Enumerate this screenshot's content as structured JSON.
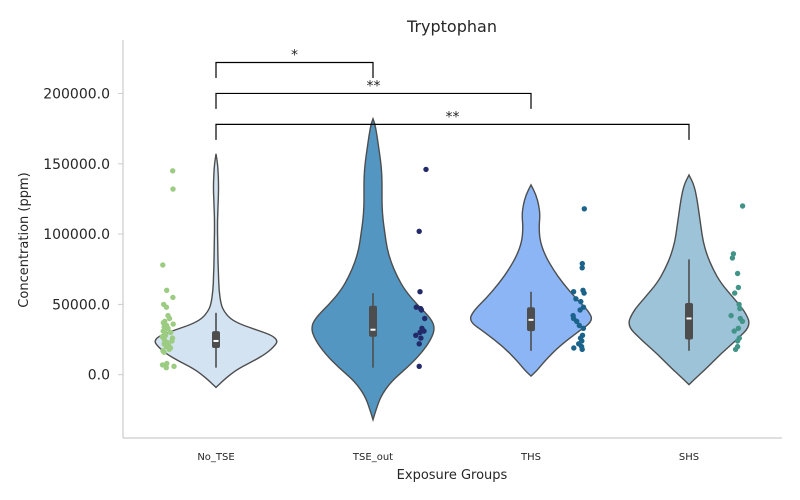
{
  "chart_data": {
    "type": "violin",
    "title": "Tryptophan",
    "xlabel": "Exposure Groups",
    "ylabel": "Concentration (ppm)",
    "ylim": [
      -45000,
      238000
    ],
    "yticks": [
      0,
      50000,
      100000,
      150000,
      200000
    ],
    "ytick_labels": [
      "0.0",
      "50000.0",
      "100000.0",
      "150000.0",
      "200000.0"
    ],
    "categories": [
      "No_TSE",
      "TSE_out",
      "THS",
      "SHS"
    ],
    "colors": {
      "violin": [
        "#d4e3f1",
        "#5396c2",
        "#8cb5f5",
        "#9dc3d8"
      ],
      "points": [
        "#9ccc82",
        "#232a6a",
        "#1b638a",
        "#419487"
      ],
      "outline": "#4d4d4d",
      "box": "#4d4d4d",
      "axis": "#cccccc"
    },
    "grid": false,
    "violins": [
      {
        "name": "No_TSE",
        "profile": [
          [
            -9000,
            0
          ],
          [
            -5000,
            6
          ],
          [
            0,
            14
          ],
          [
            5000,
            24
          ],
          [
            10000,
            38
          ],
          [
            15000,
            50
          ],
          [
            20000,
            58
          ],
          [
            24000,
            62
          ],
          [
            28000,
            56
          ],
          [
            32000,
            40
          ],
          [
            36000,
            24
          ],
          [
            40000,
            14
          ],
          [
            45000,
            8
          ],
          [
            50000,
            5
          ],
          [
            60000,
            3
          ],
          [
            70000,
            2.5
          ],
          [
            80000,
            2
          ],
          [
            90000,
            1.8
          ],
          [
            100000,
            1.5
          ],
          [
            110000,
            1.5
          ],
          [
            120000,
            2
          ],
          [
            130000,
            2.5
          ],
          [
            137000,
            2.5
          ],
          [
            145000,
            2
          ],
          [
            150000,
            1.5
          ],
          [
            157000,
            0
          ]
        ],
        "box": {
          "q1": 19000,
          "median": 24000,
          "q3": 31000,
          "wmin": 5000,
          "wmax": 44000
        },
        "points": [
          145000,
          132000,
          78000,
          60000,
          55000,
          50000,
          48000,
          42000,
          40000,
          38000,
          37000,
          36000,
          35000,
          34000,
          33000,
          32000,
          31000,
          30000,
          29000,
          28000,
          27000,
          26000,
          25000,
          24000,
          23000,
          22000,
          21000,
          20000,
          19000,
          18000,
          17000,
          16000,
          8000,
          7000,
          6000,
          5000
        ]
      },
      {
        "name": "TSE_out",
        "profile": [
          [
            -32000,
            0
          ],
          [
            -25000,
            3
          ],
          [
            -15000,
            8
          ],
          [
            -5000,
            18
          ],
          [
            5000,
            34
          ],
          [
            15000,
            48
          ],
          [
            25000,
            58
          ],
          [
            33000,
            62
          ],
          [
            40000,
            58
          ],
          [
            50000,
            44
          ],
          [
            60000,
            32
          ],
          [
            70000,
            24
          ],
          [
            80000,
            18
          ],
          [
            90000,
            14
          ],
          [
            100000,
            12
          ],
          [
            110000,
            10
          ],
          [
            120000,
            9
          ],
          [
            130000,
            9
          ],
          [
            140000,
            9
          ],
          [
            150000,
            8
          ],
          [
            160000,
            6
          ],
          [
            170000,
            4
          ],
          [
            178000,
            2
          ],
          [
            182000,
            0
          ]
        ],
        "box": {
          "q1": 27000,
          "median": 32000,
          "q3": 49000,
          "wmin": 5000,
          "wmax": 58000
        },
        "points": [
          146000,
          102000,
          59000,
          48000,
          47000,
          46000,
          40000,
          33000,
          31000,
          30000,
          28000,
          26000,
          22000,
          6000
        ]
      },
      {
        "name": "THS",
        "profile": [
          [
            -1000,
            0
          ],
          [
            3000,
            6
          ],
          [
            10000,
            14
          ],
          [
            20000,
            28
          ],
          [
            30000,
            46
          ],
          [
            38000,
            62
          ],
          [
            45000,
            58
          ],
          [
            55000,
            44
          ],
          [
            65000,
            32
          ],
          [
            75000,
            22
          ],
          [
            85000,
            14
          ],
          [
            95000,
            9
          ],
          [
            105000,
            8
          ],
          [
            113000,
            9
          ],
          [
            120000,
            8
          ],
          [
            128000,
            5
          ],
          [
            135000,
            0
          ]
        ],
        "box": {
          "q1": 31000,
          "median": 39000,
          "q3": 48000,
          "wmin": 17000,
          "wmax": 59000
        },
        "points": [
          118000,
          79000,
          76000,
          60000,
          59000,
          58000,
          54000,
          52000,
          48000,
          46000,
          42000,
          40000,
          38000,
          35000,
          33000,
          28000,
          26000,
          24000,
          22000,
          20000,
          19000,
          18000
        ]
      },
      {
        "name": "SHS",
        "profile": [
          [
            -7000,
            0
          ],
          [
            -3000,
            6
          ],
          [
            5000,
            18
          ],
          [
            15000,
            32
          ],
          [
            25000,
            48
          ],
          [
            35000,
            62
          ],
          [
            45000,
            56
          ],
          [
            55000,
            44
          ],
          [
            65000,
            32
          ],
          [
            75000,
            24
          ],
          [
            85000,
            18
          ],
          [
            95000,
            14
          ],
          [
            105000,
            12
          ],
          [
            115000,
            10
          ],
          [
            125000,
            8
          ],
          [
            135000,
            5
          ],
          [
            142000,
            0
          ]
        ],
        "box": {
          "q1": 25000,
          "median": 40000,
          "q3": 51000,
          "wmin": 17000,
          "wmax": 82000
        },
        "points": [
          120000,
          86000,
          83000,
          72000,
          62000,
          58000,
          50000,
          47000,
          42000,
          40000,
          38000,
          33000,
          31000,
          26000,
          24000,
          20000,
          18000
        ]
      }
    ],
    "annotations": [
      {
        "from": "No_TSE",
        "to": "TSE_out",
        "level": 222000,
        "drop": 211000,
        "label": "*"
      },
      {
        "from": "No_TSE",
        "to": "THS",
        "level": 200000,
        "drop": 189000,
        "label": "**"
      },
      {
        "from": "No_TSE",
        "to": "SHS",
        "level": 178000,
        "drop": 167000,
        "label": "**"
      }
    ]
  }
}
